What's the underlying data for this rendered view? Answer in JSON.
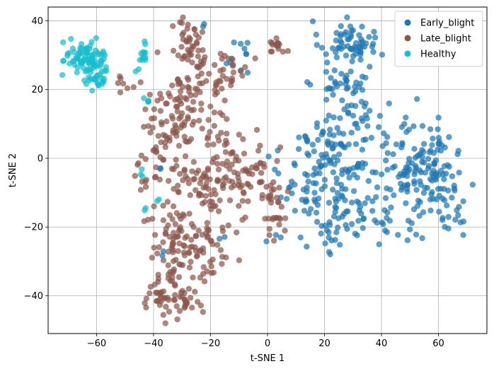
{
  "chart_data": {
    "type": "scatter",
    "title": "",
    "xlabel": "t-SNE 1",
    "ylabel": "t-SNE 2",
    "xlim": [
      -77,
      77
    ],
    "ylim": [
      -51,
      44
    ],
    "xticks": [
      -60,
      -40,
      -20,
      0,
      20,
      40,
      60
    ],
    "yticks": [
      -40,
      -20,
      0,
      20,
      40
    ],
    "xtick_labels": [
      "−60",
      "−40",
      "−20",
      "0",
      "20",
      "40",
      "60"
    ],
    "ytick_labels": [
      "−40",
      "−20",
      "0",
      "20",
      "40"
    ],
    "grid": true,
    "legend_position": "top-right",
    "series": [
      {
        "name": "Early_blight",
        "color": "#1f77b4",
        "clusters": [
          {
            "cx": 28,
            "cy": 34,
            "sx": 5,
            "sy": 3,
            "n": 60
          },
          {
            "cx": 28,
            "cy": 20,
            "sx": 6,
            "sy": 6,
            "n": 55
          },
          {
            "cx": 23,
            "cy": 3,
            "sx": 8,
            "sy": 6,
            "n": 85
          },
          {
            "cx": 27,
            "cy": -12,
            "sx": 9,
            "sy": 6,
            "n": 70
          },
          {
            "cx": 26,
            "cy": -22,
            "sx": 6,
            "sy": 3,
            "n": 25
          },
          {
            "cx": 47,
            "cy": -5,
            "sx": 9,
            "sy": 8,
            "n": 75
          },
          {
            "cx": 60,
            "cy": -8,
            "sx": 7,
            "sy": 9,
            "n": 80
          },
          {
            "cx": 57,
            "cy": 3,
            "sx": 6,
            "sy": 4,
            "n": 25
          },
          {
            "cx": 12,
            "cy": -7,
            "sx": 4,
            "sy": 5,
            "n": 14
          },
          {
            "cx": -9,
            "cy": 31,
            "sx": 1.5,
            "sy": 1.5,
            "n": 6
          },
          {
            "cx": -13,
            "cy": 28,
            "sx": 1,
            "sy": 1,
            "n": 3
          },
          {
            "cx": -22,
            "cy": 39,
            "sx": 1,
            "sy": 0.7,
            "n": 2
          },
          {
            "cx": -37,
            "cy": -2,
            "sx": 0.8,
            "sy": 0.8,
            "n": 2
          },
          {
            "cx": -36,
            "cy": -28,
            "sx": 0.8,
            "sy": 0.8,
            "n": 2
          },
          {
            "cx": -18,
            "cy": -22,
            "sx": 1,
            "sy": 1,
            "n": 2
          },
          {
            "cx": 2,
            "cy": -23,
            "sx": 1.5,
            "sy": 1,
            "n": 3
          },
          {
            "cx": -8,
            "cy": 25,
            "sx": 1,
            "sy": 1,
            "n": 2
          },
          {
            "cx": -41,
            "cy": 17,
            "sx": 0.8,
            "sy": 0.8,
            "n": 1
          }
        ]
      },
      {
        "name": "Late_blight",
        "color": "#8c564b",
        "clusters": [
          {
            "cx": -27,
            "cy": 31,
            "sx": 4,
            "sy": 5,
            "n": 55
          },
          {
            "cx": -13,
            "cy": 26,
            "sx": 3,
            "sy": 3,
            "n": 20
          },
          {
            "cx": -25,
            "cy": 15,
            "sx": 5,
            "sy": 5,
            "n": 45
          },
          {
            "cx": -34,
            "cy": 7,
            "sx": 4,
            "sy": 4,
            "n": 30
          },
          {
            "cx": -33,
            "cy": 20,
            "sx": 3,
            "sy": 3,
            "n": 14
          },
          {
            "cx": -28,
            "cy": -3,
            "sx": 9,
            "sy": 6,
            "n": 85
          },
          {
            "cx": -9,
            "cy": -2,
            "sx": 6,
            "sy": 5,
            "n": 45
          },
          {
            "cx": -18,
            "cy": -13,
            "sx": 6,
            "sy": 5,
            "n": 40
          },
          {
            "cx": -33,
            "cy": -24,
            "sx": 5,
            "sy": 5,
            "n": 55
          },
          {
            "cx": -23,
            "cy": -29,
            "sx": 5,
            "sy": 5,
            "n": 50
          },
          {
            "cx": -37,
            "cy": -40,
            "sx": 3,
            "sy": 3,
            "n": 40
          },
          {
            "cx": -28,
            "cy": -41,
            "sx": 3,
            "sy": 2.5,
            "n": 20
          },
          {
            "cx": 2,
            "cy": -15,
            "sx": 2,
            "sy": 6,
            "n": 30
          },
          {
            "cx": 3,
            "cy": 32,
            "sx": 2,
            "sy": 1.5,
            "n": 16
          },
          {
            "cx": -48,
            "cy": 22,
            "sx": 2.5,
            "sy": 1.5,
            "n": 8
          },
          {
            "cx": -39,
            "cy": 16,
            "sx": 2,
            "sy": 3,
            "n": 8
          },
          {
            "cx": -1,
            "cy": -3,
            "sx": 2,
            "sy": 3,
            "n": 10
          },
          {
            "cx": -17,
            "cy": 21,
            "sx": 2,
            "sy": 2,
            "n": 10
          }
        ]
      },
      {
        "name": "Healthy",
        "color": "#17becf",
        "clusters": [
          {
            "cx": -64,
            "cy": 29,
            "sx": 3.5,
            "sy": 2.8,
            "n": 85
          },
          {
            "cx": -60,
            "cy": 24,
            "sx": 1.8,
            "sy": 1.8,
            "n": 25
          },
          {
            "cx": -43,
            "cy": 31,
            "sx": 0.9,
            "sy": 1.5,
            "n": 12
          },
          {
            "cx": -42,
            "cy": 17,
            "sx": 0.7,
            "sy": 0.7,
            "n": 3
          },
          {
            "cx": -44,
            "cy": -4.5,
            "sx": 0.5,
            "sy": 0.5,
            "n": 3
          },
          {
            "cx": -42,
            "cy": -15,
            "sx": 0.7,
            "sy": 0.7,
            "n": 2
          },
          {
            "cx": -38,
            "cy": -12,
            "sx": 0.5,
            "sy": 0.5,
            "n": 2
          },
          {
            "cx": -46,
            "cy": 25,
            "sx": 0.6,
            "sy": 0.6,
            "n": 2
          }
        ]
      }
    ]
  }
}
